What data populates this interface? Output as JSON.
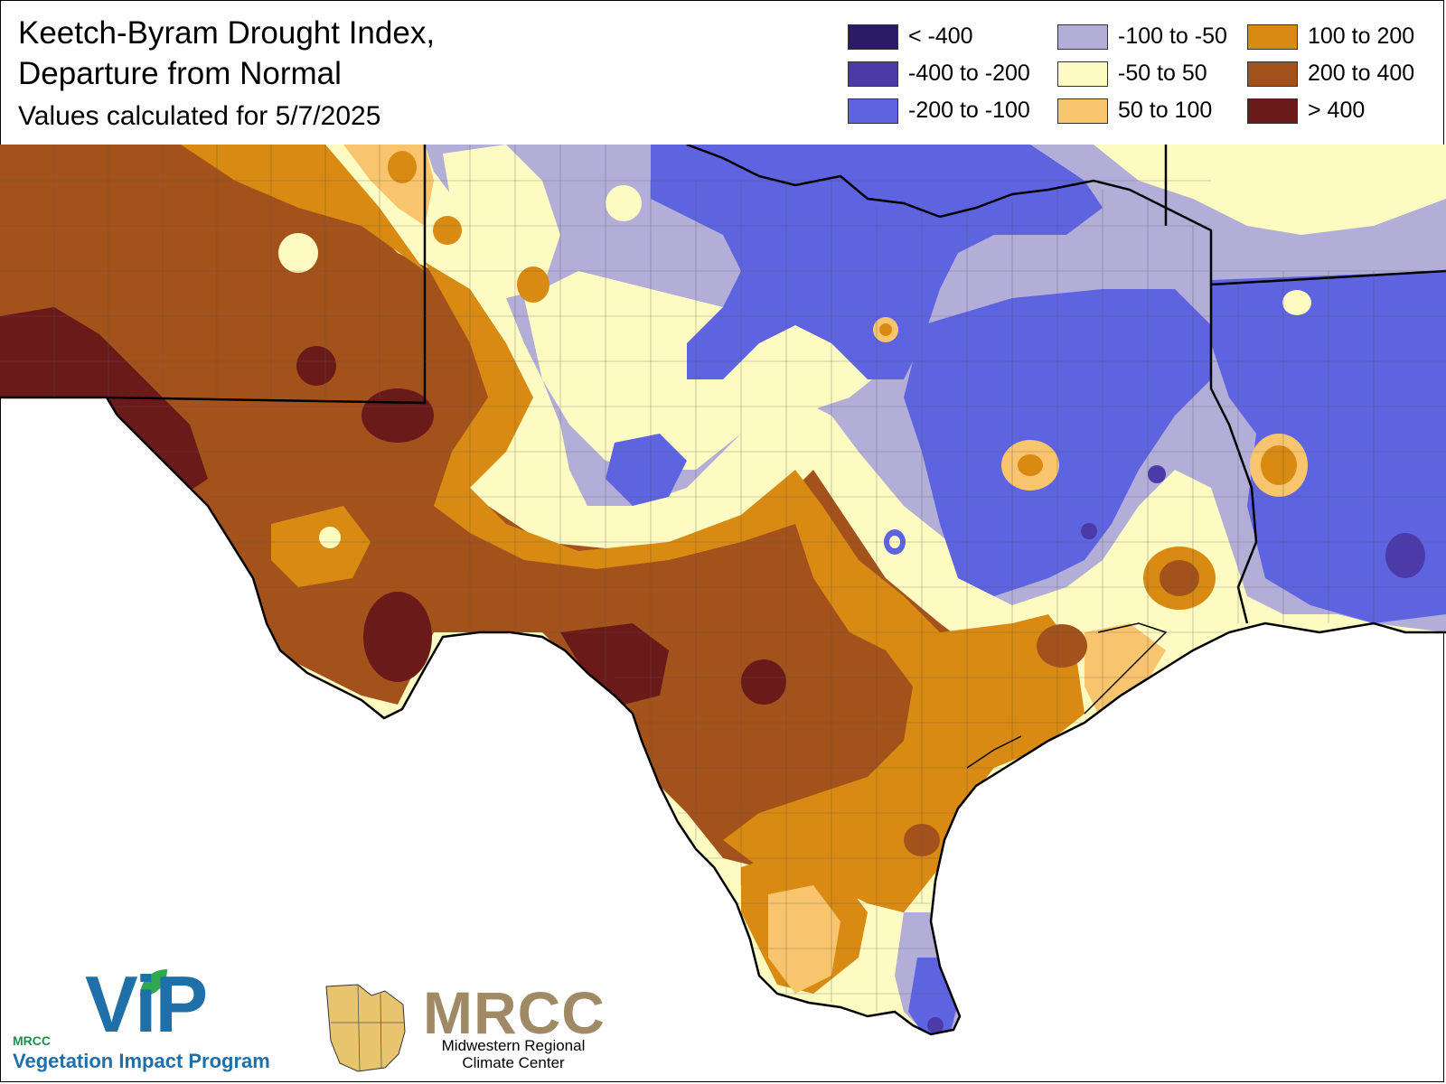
{
  "title": {
    "line1": "Keetch-Byram Drought Index,",
    "line2": "Departure from Normal",
    "subtitle": "Values calculated for 5/7/2025"
  },
  "legend": [
    {
      "label": "< -400",
      "color": "#2b1a66"
    },
    {
      "label": "-100 to -50",
      "color": "#b3aed8"
    },
    {
      "label": "100 to 200",
      "color": "#d98a12"
    },
    {
      "label": "-400 to -200",
      "color": "#4b3aa8"
    },
    {
      "label": "-50 to 50",
      "color": "#fdfbc2"
    },
    {
      "label": "200 to 400",
      "color": "#a4521c"
    },
    {
      "label": "-200 to -100",
      "color": "#5e63e0"
    },
    {
      "label": "50 to 100",
      "color": "#f8c56e"
    },
    {
      "label": "> 400",
      "color": "#6b1a1a"
    }
  ],
  "logos": {
    "vip": {
      "letters": "ViP",
      "org": "MRCC",
      "name": "Vegetation Impact Program"
    },
    "mrcc": {
      "letters": "MRCC",
      "name_line1": "Midwestern Regional",
      "name_line2": "Climate Center"
    }
  }
}
